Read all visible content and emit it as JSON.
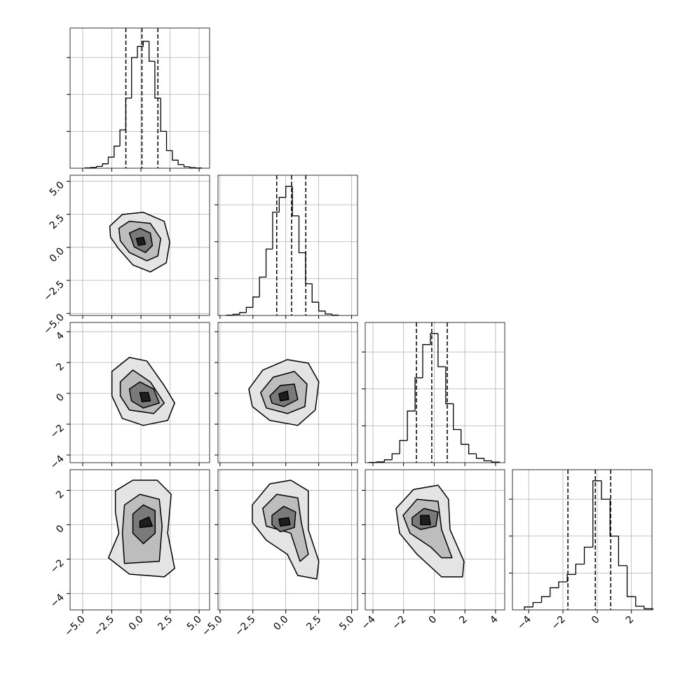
{
  "chart_data": {
    "type": "corner",
    "grid": true,
    "grid_color": "#b0b0b0",
    "line_color": "#000000",
    "contour_fills": [
      "#e4e4e4",
      "#bdbdbd",
      "#7a7a7a",
      "#1e1e1e"
    ],
    "params": [
      {
        "lim": [
          -6.08,
          5.9
        ],
        "ticks": [
          {
            "value": -5,
            "label": "−5.0"
          },
          {
            "value": -2.5,
            "label": "−2.5"
          },
          {
            "value": 0,
            "label": "0.0"
          },
          {
            "value": 2.5,
            "label": "2.5"
          },
          {
            "value": 5,
            "label": "5.0"
          }
        ]
      },
      {
        "lim": [
          -5.15,
          5.45
        ],
        "ticks": [
          {
            "value": -5,
            "label": "−5.0"
          },
          {
            "value": -2.5,
            "label": "−2.5"
          },
          {
            "value": 0,
            "label": "0.0"
          },
          {
            "value": 2.5,
            "label": "2.5"
          },
          {
            "value": 5,
            "label": "5.0"
          }
        ]
      },
      {
        "lim": [
          -4.5,
          4.6
        ],
        "ticks": [
          {
            "value": -4,
            "label": "−4"
          },
          {
            "value": -2,
            "label": "−2"
          },
          0,
          2,
          4
        ]
      },
      {
        "lim": [
          -4.95,
          3.2
        ],
        "ticks": [
          {
            "value": -4,
            "label": "−4"
          },
          {
            "value": -2,
            "label": "−2"
          },
          0,
          2
        ]
      }
    ],
    "histograms": [
      {
        "bins": [
          -4.8,
          -4.3,
          -3.8,
          -3.3,
          -2.8,
          -2.3,
          -1.8,
          -1.3,
          -0.8,
          -0.3,
          0.2,
          0.7,
          1.2,
          1.7,
          2.2,
          2.7,
          3.2,
          3.7,
          4.2,
          4.7,
          5.2
        ],
        "counts": [
          5,
          10,
          25,
          60,
          150,
          300,
          520,
          950,
          1500,
          1650,
          1720,
          1450,
          950,
          500,
          240,
          110,
          50,
          20,
          8,
          3
        ],
        "ylim": [
          0,
          1900
        ],
        "yticks": [
          500,
          1000,
          1500
        ],
        "quantiles": [
          -1.29,
          0.09,
          1.46
        ]
      },
      {
        "bins": [
          -4.5,
          -4,
          -3.5,
          -3,
          -2.5,
          -2,
          -1.5,
          -1,
          -0.5,
          0,
          0.5,
          1,
          1.5,
          2,
          2.5,
          3,
          3.5,
          4
        ],
        "counts": [
          5,
          15,
          40,
          110,
          250,
          520,
          900,
          1400,
          1600,
          1750,
          1350,
          850,
          430,
          180,
          60,
          20,
          5
        ],
        "ylim": [
          0,
          1900
        ],
        "yticks": [
          500,
          1000,
          1500
        ],
        "quantiles": [
          -0.69,
          0.44,
          1.52
        ]
      },
      {
        "bins": [
          -4.25,
          -3.75,
          -3.25,
          -2.75,
          -2.25,
          -1.75,
          -1.25,
          -0.75,
          -0.25,
          0.25,
          0.75,
          1.25,
          1.75,
          2.25,
          2.75,
          3.25,
          3.75,
          4.25
        ],
        "counts": [
          3,
          10,
          40,
          120,
          300,
          700,
          1150,
          1600,
          1750,
          1300,
          800,
          450,
          250,
          120,
          60,
          25,
          8
        ],
        "ylim": [
          0,
          1900
        ],
        "yticks": [
          500,
          1000,
          1500
        ],
        "quantiles": [
          -1.16,
          -0.16,
          0.85
        ]
      },
      {
        "bins": [
          -4.25,
          -3.75,
          -3.25,
          -2.75,
          -2.25,
          -1.75,
          -1.25,
          -0.75,
          -0.25,
          0.25,
          0.75,
          1.25,
          1.75,
          2.25,
          2.75,
          3.25
        ],
        "counts": [
          40,
          100,
          180,
          300,
          380,
          480,
          620,
          850,
          1750,
          1500,
          1000,
          600,
          180,
          50,
          15
        ],
        "ylim": [
          0,
          1900
        ],
        "yticks": [
          500,
          1000,
          1500
        ],
        "quantiles": [
          -1.71,
          -0.11,
          0.79
        ]
      }
    ],
    "contours": [
      {
        "x_param": 0,
        "y_param": 1,
        "levels": [
          {
            "x": [
              -2.67,
              -1.59,
              0.21,
              2.0,
              2.48,
              2.18,
              0.81,
              -0.69,
              -1.89,
              -2.61
            ],
            "y": [
              1.6,
              2.49,
              2.65,
              1.97,
              0.4,
              -1.17,
              -1.86,
              -1.33,
              -0.13,
              0.76
            ]
          },
          {
            "x": [
              -1.89,
              -0.99,
              0.81,
              1.7,
              1.46,
              0.51,
              -0.99,
              -1.77
            ],
            "y": [
              1.44,
              1.97,
              1.81,
              0.66,
              -0.65,
              -1.02,
              -0.39,
              0.5
            ]
          },
          {
            "x": [
              -0.99,
              -0.09,
              0.81,
              0.99,
              0.39,
              -0.57
            ],
            "y": [
              1.08,
              1.44,
              1.08,
              0.14,
              -0.39,
              0.03
            ]
          },
          {
            "x": [
              -0.39,
              0.21,
              0.39,
              -0.21
            ],
            "y": [
              0.66,
              0.76,
              0.24,
              0.14
            ]
          }
        ]
      },
      {
        "x_param": 0,
        "y_param": 2,
        "levels": [
          {
            "x": [
              -2.49,
              -0.99,
              0.51,
              2.0,
              2.9,
              2.3,
              0.21,
              -1.59,
              -2.49
            ],
            "y": [
              1.42,
              2.33,
              2.1,
              0.51,
              -0.63,
              -1.76,
              -2.08,
              -1.63,
              -0.17
            ]
          },
          {
            "x": [
              -1.77,
              -0.69,
              0.81,
              2.0,
              1.1,
              -0.99,
              -1.77
            ],
            "y": [
              0.74,
              1.51,
              0.74,
              -0.63,
              -1.31,
              -1.08,
              -0.17
            ]
          },
          {
            "x": [
              -0.99,
              -0.09,
              1.1,
              1.58,
              0.21,
              -0.81
            ],
            "y": [
              0.28,
              0.74,
              0.28,
              -0.63,
              -0.95,
              -0.49
            ]
          },
          {
            "x": [
              -0.09,
              0.63,
              0.81,
              0.09
            ],
            "y": [
              0.05,
              0.05,
              -0.49,
              -0.54
            ]
          }
        ]
      },
      {
        "x_param": 1,
        "y_param": 2,
        "levels": [
          {
            "x": [
              -2.81,
              -1.75,
              0.12,
              1.71,
              2.51,
              2.24,
              0.91,
              -1.21,
              -2.54
            ],
            "y": [
              0.28,
              1.51,
              2.19,
              1.96,
              0.74,
              -1.08,
              -2.08,
              -1.76,
              -0.86
            ]
          },
          {
            "x": [
              -1.91,
              -0.95,
              0.65,
              1.61,
              1.45,
              0.12,
              -1.48
            ],
            "y": [
              0.05,
              1.05,
              1.42,
              0.6,
              -0.86,
              -1.31,
              -0.95
            ]
          },
          {
            "x": [
              -1.21,
              -0.42,
              0.65,
              0.91,
              -0.15,
              -1.05
            ],
            "y": [
              -0.17,
              0.51,
              0.6,
              -0.4,
              -0.86,
              -0.63
            ]
          },
          {
            "x": [
              -0.52,
              0.12,
              0.22,
              -0.42
            ],
            "y": [
              -0.03,
              0.15,
              -0.4,
              -0.49
            ]
          }
        ]
      },
      {
        "x_param": 0,
        "y_param": 3,
        "levels": [
          {
            "x": [
              -2.19,
              -0.69,
              1.4,
              2.6,
              2.3,
              2.9,
              2.0,
              -0.99,
              -2.79,
              -1.89,
              -2.19
            ],
            "y": [
              1.97,
              2.59,
              2.59,
              1.77,
              -0.49,
              -2.54,
              -3.03,
              -2.87,
              -1.92,
              -0.49,
              0.74
            ]
          },
          {
            "x": [
              -1.41,
              -0.09,
              1.58,
              1.82,
              1.58,
              -1.41,
              -1.59
            ],
            "y": [
              1.15,
              1.77,
              1.48,
              -0.08,
              -2.13,
              -2.25,
              -0.49
            ]
          },
          {
            "x": [
              -0.69,
              0.21,
              1.22,
              1.22,
              0.21,
              -0.69
            ],
            "y": [
              0.62,
              1.15,
              0.82,
              -0.49,
              -1.1,
              -0.49
            ]
          },
          {
            "x": [
              -0.09,
              0.69,
              0.99,
              -0.09
            ],
            "y": [
              0.21,
              0.45,
              -0.08,
              -0.16
            ]
          }
        ]
      },
      {
        "x_param": 1,
        "y_param": 3,
        "levels": [
          {
            "x": [
              -2.54,
              -1.21,
              0.38,
              1.71,
              1.71,
              2.51,
              2.35,
              0.91,
              0.12,
              -1.48,
              -2.54
            ],
            "y": [
              1.15,
              2.38,
              2.59,
              1.97,
              -0.28,
              -2.13,
              -3.15,
              -2.95,
              -1.72,
              -0.9,
              0.13
            ]
          },
          {
            "x": [
              -1.75,
              -0.68,
              0.91,
              1.18,
              1.71,
              1.08,
              0.38,
              -1.48
            ],
            "y": [
              0.95,
              1.77,
              1.56,
              0.13,
              -1.72,
              -2.13,
              -0.49,
              -0.08
            ]
          },
          {
            "x": [
              -1.05,
              -0.15,
              0.75,
              0.65,
              -0.42,
              -1.05
            ],
            "y": [
              0.54,
              1.07,
              0.74,
              -0.16,
              -0.41,
              0.0
            ]
          },
          {
            "x": [
              -0.52,
              0.22,
              0.33,
              -0.42
            ],
            "y": [
              0.33,
              0.41,
              0.0,
              -0.08
            ]
          }
        ]
      },
      {
        "x_param": 2,
        "y_param": 3,
        "levels": [
          {
            "x": [
              -2.49,
              -1.35,
              0.25,
              0.93,
              1.03,
              1.94,
              1.85,
              0.48,
              -1.12,
              -2.26
            ],
            "y": [
              0.95,
              2.05,
              2.3,
              1.48,
              -0.28,
              -2.13,
              -3.03,
              -3.03,
              -1.72,
              -0.49
            ]
          },
          {
            "x": [
              -2.03,
              -1.12,
              0.25,
              0.48,
              1.16,
              0.48,
              -0.21,
              -1.58
            ],
            "y": [
              0.54,
              1.48,
              1.36,
              -0.28,
              -1.92,
              -1.92,
              -1.31,
              -0.49
            ]
          },
          {
            "x": [
              -1.44,
              -0.66,
              0.25,
              0.11,
              -0.89,
              -1.44
            ],
            "y": [
              0.41,
              0.95,
              0.74,
              -0.08,
              -0.28,
              0.0
            ]
          },
          {
            "x": [
              -0.89,
              -0.34,
              -0.25,
              -0.89
            ],
            "y": [
              0.54,
              0.54,
              0.0,
              0.0
            ]
          }
        ]
      }
    ]
  }
}
